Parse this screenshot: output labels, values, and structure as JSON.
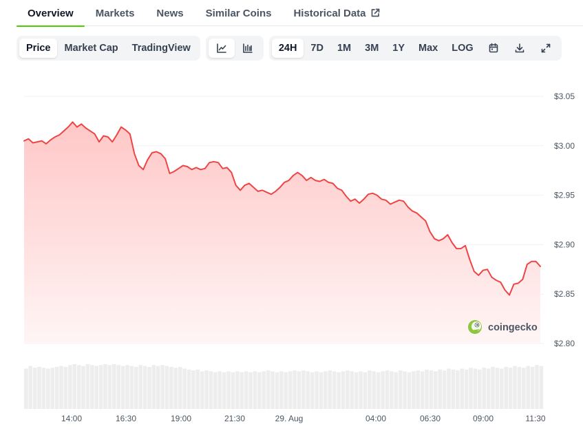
{
  "tabs": [
    {
      "label": "Overview",
      "active": true
    },
    {
      "label": "Markets"
    },
    {
      "label": "News"
    },
    {
      "label": "Similar Coins"
    },
    {
      "label": "Historical Data",
      "external": true
    }
  ],
  "toolbar": {
    "metrics": [
      "Price",
      "Market Cap",
      "TradingView"
    ],
    "active_metric": "Price",
    "chart_styles": [
      {
        "icon": "line-chart-icon",
        "active": true
      },
      {
        "icon": "candlestick-chart-icon",
        "active": false
      }
    ],
    "ranges": [
      "24H",
      "7D",
      "1M",
      "3M",
      "1Y",
      "Max",
      "LOG"
    ],
    "active_range": "24H",
    "tools": [
      "calendar-icon",
      "download-icon",
      "fullscreen-icon"
    ]
  },
  "watermark": "coingecko",
  "colors": {
    "line": "#ef4444",
    "area_top": "#ffc7c7",
    "area_bottom": "#fff5f5",
    "volume": "#ededed",
    "tab_underline": "#4bcc00"
  },
  "chart_data": {
    "type": "area",
    "title": "",
    "xlabel": "",
    "ylabel": "",
    "ylim": [
      2.8,
      3.05
    ],
    "y_ticks": [
      "$3.05",
      "$3.00",
      "$2.95",
      "$2.90",
      "$2.85",
      "$2.80"
    ],
    "x_ticks": [
      "14:00",
      "16:30",
      "19:00",
      "21:30",
      "29. Aug",
      "04:00",
      "06:30",
      "09:00",
      "11:30"
    ],
    "grid": true,
    "x_start": "28 Aug 12:05",
    "x_end": "29 Aug 11:35",
    "series": [
      {
        "values": [
          3.005,
          3.007,
          3.003,
          3.004,
          3.005,
          3.002,
          3.006,
          3.009,
          3.011,
          3.015,
          3.019,
          3.024,
          3.019,
          3.022,
          3.018,
          3.015,
          3.012,
          3.004,
          3.01,
          3.009,
          3.004,
          3.011,
          3.019,
          3.016,
          3.012,
          2.992,
          2.98,
          2.976,
          2.986,
          2.993,
          2.994,
          2.992,
          2.987,
          2.972,
          2.974,
          2.977,
          2.98,
          2.979,
          2.976,
          2.978,
          2.976,
          2.977,
          2.983,
          2.984,
          2.983,
          2.977,
          2.978,
          2.973,
          2.96,
          2.955,
          2.96,
          2.962,
          2.958,
          2.954,
          2.955,
          2.953,
          2.951,
          2.954,
          2.958,
          2.963,
          2.965,
          2.97,
          2.973,
          2.97,
          2.965,
          2.968,
          2.965,
          2.964,
          2.966,
          2.963,
          2.962,
          2.957,
          2.955,
          2.949,
          2.944,
          2.946,
          2.942,
          2.946,
          2.951,
          2.952,
          2.95,
          2.946,
          2.945,
          2.941,
          2.943,
          2.945,
          2.944,
          2.938,
          2.934,
          2.932,
          2.928,
          2.924,
          2.913,
          2.906,
          2.904,
          2.906,
          2.91,
          2.902,
          2.896,
          2.896,
          2.899,
          2.885,
          2.873,
          2.869,
          2.874,
          2.875,
          2.867,
          2.864,
          2.862,
          2.854,
          2.849,
          2.86,
          2.861,
          2.865,
          2.88,
          2.883,
          2.883,
          2.878
        ]
      }
    ],
    "volume": [
      0.45,
      0.48,
      0.46,
      0.47,
      0.46,
      0.45,
      0.46,
      0.47,
      0.48,
      0.47,
      0.49,
      0.5,
      0.49,
      0.48,
      0.5,
      0.49,
      0.48,
      0.49,
      0.5,
      0.49,
      0.5,
      0.49,
      0.48,
      0.49,
      0.48,
      0.47,
      0.49,
      0.48,
      0.47,
      0.49,
      0.48,
      0.49,
      0.48,
      0.47,
      0.46,
      0.47,
      0.45,
      0.44,
      0.43,
      0.44,
      0.42,
      0.43,
      0.42,
      0.41,
      0.42,
      0.41,
      0.42,
      0.41,
      0.42,
      0.41,
      0.42,
      0.41,
      0.42,
      0.41,
      0.42,
      0.43,
      0.42,
      0.41,
      0.42,
      0.41,
      0.42,
      0.43,
      0.42,
      0.43,
      0.42,
      0.41,
      0.42,
      0.41,
      0.42,
      0.43,
      0.42,
      0.41,
      0.42,
      0.43,
      0.42,
      0.41,
      0.42,
      0.41,
      0.43,
      0.42,
      0.41,
      0.42,
      0.43,
      0.42,
      0.41,
      0.43,
      0.42,
      0.41,
      0.42,
      0.43,
      0.42,
      0.44,
      0.43,
      0.42,
      0.44,
      0.43,
      0.45,
      0.44,
      0.43,
      0.45,
      0.44,
      0.46,
      0.45,
      0.44,
      0.46,
      0.45,
      0.47,
      0.46,
      0.45,
      0.47,
      0.46,
      0.48,
      0.47,
      0.46,
      0.48,
      0.47,
      0.49,
      0.48
    ]
  }
}
